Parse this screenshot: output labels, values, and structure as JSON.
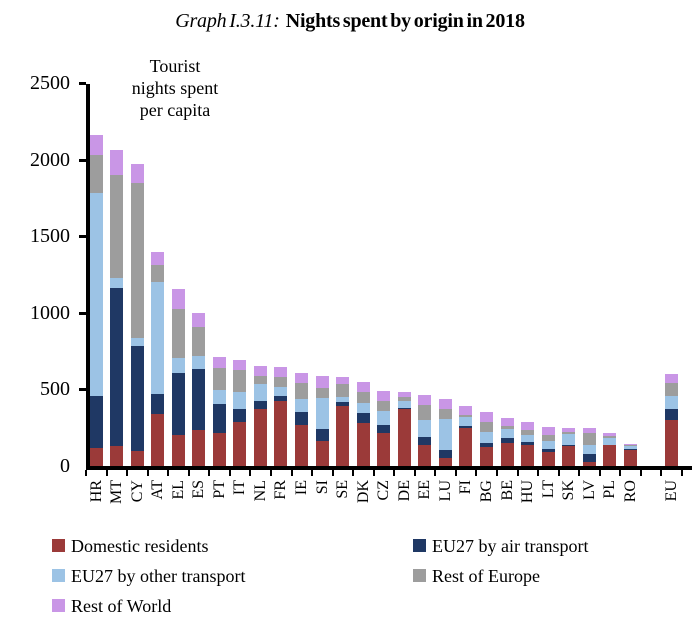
{
  "title": {
    "prefix": "Graph I.3.11:",
    "text": "Nights spent by origin in 2018"
  },
  "annotation": "Tourist\nnights spent\nper capita",
  "colors": {
    "domestic": "#9B3A39",
    "air": "#1F3864",
    "other": "#9CC3E5",
    "europe": "#9D9D9D",
    "world": "#C996E6",
    "axis": "#000000",
    "background": "#FFFFFF"
  },
  "chart_data": {
    "type": "bar",
    "stacked": true,
    "title": "Nights spent by origin in 2018",
    "ylabel": "Tourist nights spent per capita",
    "xlabel": "",
    "ylim": [
      0,
      2500
    ],
    "yticks": [
      0,
      500,
      1000,
      1500,
      2000,
      2500
    ],
    "grid": false,
    "legend_position": "bottom",
    "categories": [
      "HR",
      "MT",
      "CY",
      "AT",
      "EL",
      "ES",
      "PT",
      "IT",
      "NL",
      "FR",
      "IE",
      "SI",
      "SE",
      "DK",
      "CZ",
      "DE",
      "EE",
      "LU",
      "FI",
      "BG",
      "BE",
      "HU",
      "LT",
      "SK",
      "LV",
      "PL",
      "RO",
      "EU"
    ],
    "series": [
      {
        "name": "Domestic residents",
        "color_key": "domestic",
        "values": [
          120,
          130,
          100,
          340,
          205,
          235,
          215,
          290,
          370,
          425,
          270,
          160,
          390,
          280,
          215,
          370,
          135,
          50,
          245,
          125,
          150,
          135,
          90,
          130,
          25,
          135,
          105,
          300
        ]
      },
      {
        "name": "EU27 by air transport",
        "color_key": "air",
        "values": [
          340,
          1030,
          680,
          130,
          400,
          395,
          190,
          80,
          55,
          35,
          80,
          80,
          25,
          65,
          55,
          10,
          55,
          55,
          15,
          25,
          35,
          20,
          20,
          10,
          55,
          5,
          5,
          75
        ]
      },
      {
        "name": "EU27 by other transport",
        "color_key": "other",
        "values": [
          1320,
          65,
          55,
          730,
          100,
          90,
          90,
          110,
          110,
          55,
          90,
          205,
          35,
          65,
          90,
          45,
          110,
          200,
          60,
          75,
          55,
          45,
          55,
          72,
          55,
          40,
          20,
          80
        ]
      },
      {
        "name": "Rest of Europe",
        "color_key": "europe",
        "values": [
          250,
          675,
          1015,
          110,
          320,
          185,
          145,
          145,
          55,
          65,
          100,
          65,
          85,
          75,
          65,
          25,
          100,
          65,
          15,
          65,
          20,
          35,
          35,
          8,
          80,
          15,
          5,
          90
        ]
      },
      {
        "name": "Rest of World",
        "color_key": "world",
        "values": [
          130,
          165,
          120,
          90,
          130,
          95,
          70,
          65,
          65,
          65,
          65,
          80,
          45,
          65,
          65,
          30,
          65,
          65,
          55,
          65,
          55,
          55,
          55,
          30,
          30,
          20,
          10,
          55
        ]
      }
    ]
  },
  "legend": {
    "items": [
      {
        "label": "Domestic residents",
        "color_key": "domestic"
      },
      {
        "label": "EU27 by air transport",
        "color_key": "air"
      },
      {
        "label": "EU27 by other transport",
        "color_key": "other"
      },
      {
        "label": "Rest of Europe",
        "color_key": "europe"
      },
      {
        "label": "Rest of World",
        "color_key": "world"
      }
    ]
  }
}
